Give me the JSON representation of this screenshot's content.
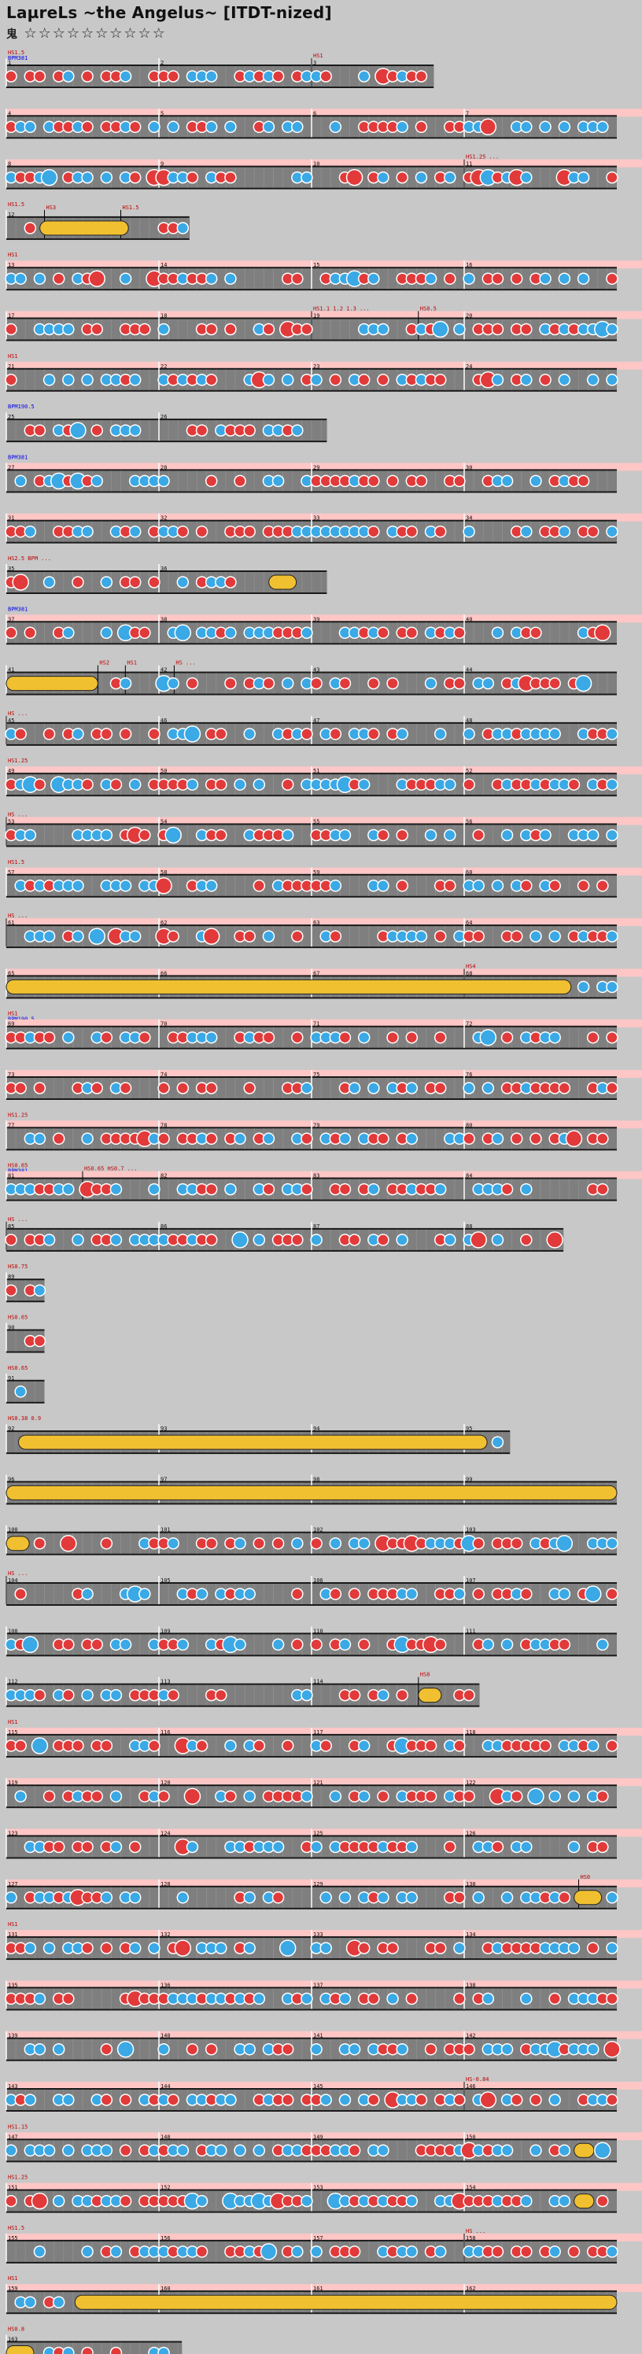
{
  "song": {
    "title": "LaµreLs ~the Angelus~ [ITDT-nized]",
    "difficulty_label": "鬼",
    "stars": "☆☆☆☆☆☆☆☆☆☆"
  },
  "colors": {
    "don": "#e23a3a",
    "ka": "#3aa9e6",
    "roll": "#f0c030",
    "lane": "#7f7f7f",
    "gogo": "#ffc6c6",
    "barline": "#ffffff",
    "hs_marker": "#c00000",
    "bpm_marker": "#0000ee"
  },
  "rows": [
    {
      "markers": [
        "HS1.5",
        "BPM381"
      ],
      "bars": [
        1,
        2,
        3
      ],
      "hs": [
        {
          "t": "HS1",
          "b": 2
        }
      ],
      "width": 2.8
    },
    {
      "bars": [
        4,
        5,
        6,
        7
      ],
      "gogo": true
    },
    {
      "bars": [
        8,
        9,
        10,
        11
      ],
      "gogo": true,
      "hs": [
        {
          "t": "HS1.25 ...",
          "b": 3
        }
      ]
    },
    {
      "markers": [
        "HS1.5"
      ],
      "bars": [
        12
      ],
      "hs": [
        {
          "t": "HS3",
          "b": 0.25
        },
        {
          "t": "HS1.5",
          "b": 0.75
        }
      ],
      "width": 1.2,
      "roll": [
        0.22,
        0.8
      ]
    },
    {
      "markers": [
        "HS1"
      ],
      "bars": [
        13,
        14,
        15,
        16
      ],
      "gogo": true
    },
    {
      "bars": [
        17,
        18,
        19,
        20
      ],
      "gogo": true,
      "hs": [
        {
          "t": "HS1.1 1.2 1.3 ...",
          "b": 2
        },
        {
          "t": "HS0.5",
          "b": 2.7
        }
      ]
    },
    {
      "markers": [
        "HS1"
      ],
      "bars": [
        21,
        22,
        23,
        24
      ],
      "gogo": true
    },
    {
      "markers": [
        "BPM190.5"
      ],
      "bars": [
        25,
        26
      ],
      "width": 2.1
    },
    {
      "markers": [
        "BPM381"
      ],
      "bars": [
        27,
        28,
        29,
        30
      ],
      "gogo": true
    },
    {
      "bars": [
        31,
        32,
        33,
        34
      ],
      "gogo": true
    },
    {
      "markers": [
        "HS2.5 BPM ..."
      ],
      "bars": [
        35,
        36
      ],
      "width": 2.1,
      "roll": [
        1.72,
        1.9
      ]
    },
    {
      "markers": [
        "BPM381"
      ],
      "bars": [
        37,
        38,
        39,
        40
      ],
      "gogo": true
    },
    {
      "bars": [
        41,
        42,
        43,
        44
      ],
      "hs": [
        {
          "t": "HS2",
          "b": 0.6
        },
        {
          "t": "HS1",
          "b": 0.78
        },
        {
          "t": "HS ...",
          "b": 1.1
        }
      ],
      "roll": [
        0,
        0.6
      ]
    },
    {
      "bars": [
        45,
        46,
        47,
        48
      ],
      "hs": [
        {
          "t": "HS ...",
          "b": 0
        }
      ]
    },
    {
      "markers": [
        "HS1.25"
      ],
      "bars": [
        49,
        50,
        51,
        52
      ],
      "gogo": true
    },
    {
      "bars": [
        53,
        54,
        55,
        56
      ],
      "gogo": true,
      "hs": [
        {
          "t": "HS ...",
          "b": 0
        }
      ]
    },
    {
      "markers": [
        "HS1.5"
      ],
      "bars": [
        57,
        58,
        59,
        60
      ],
      "gogo": true
    },
    {
      "bars": [
        61,
        62,
        63,
        64
      ],
      "gogo": true,
      "hs": [
        {
          "t": "HS ...",
          "b": 0
        }
      ]
    },
    {
      "markers": [],
      "bars": [
        65,
        66,
        67,
        68
      ],
      "gogo": true,
      "hs": [
        {
          "t": "HS4",
          "b": 3
        }
      ],
      "roll": [
        0,
        3.7
      ]
    },
    {
      "markers": [
        "HS1",
        "BPM190.5"
      ],
      "bars": [
        69,
        70,
        71,
        72
      ],
      "gogo": true
    },
    {
      "bars": [
        73,
        74,
        75,
        76
      ],
      "gogo": true
    },
    {
      "markers": [
        "HS1.25"
      ],
      "bars": [
        77,
        78,
        79,
        80
      ],
      "gogo": true
    },
    {
      "markers": [
        "HS0.65",
        "BPM381"
      ],
      "bars": [
        81,
        82,
        83,
        84
      ],
      "gogo": true,
      "hs": [
        {
          "t": "HS0.65 HS0.7 ...",
          "b": 0.5
        }
      ]
    },
    {
      "bars": [
        85,
        86,
        87,
        88
      ],
      "width": 3.65,
      "hs": [
        {
          "t": "HS ...",
          "b": 0
        }
      ]
    },
    {
      "markers": [
        "HS0.75"
      ],
      "bars": [
        89
      ],
      "width": 0.25
    },
    {
      "markers": [
        "HS0.65"
      ],
      "bars": [
        90
      ],
      "width": 0.25
    },
    {
      "markers": [
        "HS0.65"
      ],
      "bars": [
        91
      ],
      "width": 0.25
    },
    {
      "markers": [
        "HS0.38 0.9"
      ],
      "bars": [
        92,
        93,
        94,
        95
      ],
      "width": 3.3,
      "roll": [
        0.08,
        3.15
      ]
    },
    {
      "bars": [
        96,
        97,
        98,
        99
      ],
      "roll": [
        0,
        4
      ]
    },
    {
      "bars": [
        100,
        101,
        102,
        103
      ],
      "roll": [
        0,
        0.15
      ]
    },
    {
      "bars": [
        104,
        105,
        106,
        107
      ],
      "hs": [
        {
          "t": "HS ...",
          "b": 0
        }
      ]
    },
    {
      "bars": [
        108,
        109,
        110,
        111
      ]
    },
    {
      "bars": [
        112,
        113,
        114
      ],
      "width": 3.1,
      "hs": [
        {
          "t": "HS0",
          "b": 2.7
        }
      ],
      "roll": [
        2.7,
        2.85
      ]
    },
    {
      "markers": [
        "HS1"
      ],
      "bars": [
        115,
        116,
        117,
        118
      ],
      "gogo": true
    },
    {
      "bars": [
        119,
        120,
        121,
        122
      ],
      "gogo": true
    },
    {
      "bars": [
        123,
        124,
        125,
        126
      ],
      "gogo": true
    },
    {
      "bars": [
        127,
        128,
        129,
        130
      ],
      "gogo": true,
      "hs": [
        {
          "t": "HS0",
          "b": 3.75
        }
      ],
      "roll": [
        3.72,
        3.9
      ]
    },
    {
      "markers": [
        "HS1"
      ],
      "bars": [
        131,
        132,
        133,
        134
      ],
      "gogo": true
    },
    {
      "bars": [
        135,
        136,
        137,
        138
      ],
      "gogo": true
    },
    {
      "bars": [
        139,
        140,
        141,
        142
      ],
      "gogo": true
    },
    {
      "bars": [
        143,
        144,
        145,
        146
      ],
      "gogo": true,
      "hs": [
        {
          "t": "HS-0.84",
          "b": 3
        }
      ]
    },
    {
      "markers": [
        "HS1.15"
      ],
      "bars": [
        147,
        148,
        149,
        150
      ],
      "gogo": true,
      "roll": [
        3.72,
        3.85
      ]
    },
    {
      "markers": [
        "HS1.25"
      ],
      "bars": [
        151,
        152,
        153,
        154
      ],
      "gogo": true,
      "roll": [
        3.72,
        3.85
      ]
    },
    {
      "markers": [
        "HS1.5"
      ],
      "bars": [
        155,
        156,
        157,
        158
      ],
      "gogo": true,
      "hs": [
        {
          "t": "HS ...",
          "b": 3
        }
      ]
    },
    {
      "markers": [
        "HS1"
      ],
      "bars": [
        159,
        160,
        161,
        162
      ],
      "gogo": true,
      "roll": [
        0.45,
        4
      ]
    },
    {
      "markers": [
        "HS0.8"
      ],
      "bars": [
        163
      ],
      "width": 1.15,
      "roll": [
        0,
        0.18
      ]
    }
  ]
}
